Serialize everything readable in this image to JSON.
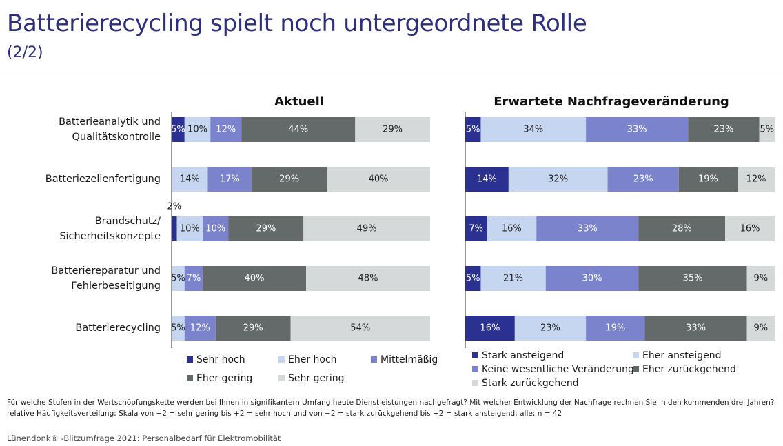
{
  "title": "Batterierecycling spielt noch untergeordnete Rolle",
  "subtitle": "(2/2)",
  "footnote_question": "Für welche Stufen in der Wertschöpfungskette werden bei Ihnen in signifikantem Umfang heute Dienstleistungen nachgefragt? Mit welcher Entwicklung der Nachfrage rechnen Sie in den kommenden drei Jahren?",
  "footnote_scale": "relative Häufigkeitsverteilung; Skala von −2 = sehr gering bis +2 = sehr hoch und von −2 = stark zurückgehend bis +2 = stark ansteigend; alle; n = 42",
  "source": "Lünendonk® -Blitzumfrage 2021: Personalbedarf für Elektromobilität",
  "chart_data": [
    {
      "type": "bar",
      "orientation": "horizontal-stacked",
      "title": "Aktuell",
      "categories": [
        [
          "Batterieanalytik und",
          "Qualitätskontrolle"
        ],
        [
          "Batteriezellenfertigung"
        ],
        [
          "Brandschutz/",
          "Sicherheitskonzepte"
        ],
        [
          "Batteriereparatur und",
          "Fehlerbeseitigung"
        ],
        [
          "Batterierecycling"
        ]
      ],
      "series": [
        {
          "name": "Sehr hoch",
          "color": "#2b3190",
          "values": [
            5,
            0,
            2,
            0,
            0
          ],
          "labels": [
            "5%",
            "",
            "2%",
            "",
            ""
          ]
        },
        {
          "name": "Eher hoch",
          "color": "#c6d6f1",
          "values": [
            10,
            14,
            10,
            5,
            5
          ],
          "labels": [
            "10%",
            "14%",
            "10%",
            "5%",
            "5%"
          ]
        },
        {
          "name": "Mittelmäßig",
          "color": "#7b83cc",
          "values": [
            12,
            17,
            10,
            7,
            12
          ],
          "labels": [
            "12%",
            "17%",
            "10%",
            "7%",
            "12%"
          ]
        },
        {
          "name": "Eher gering",
          "color": "#646969",
          "values": [
            44,
            29,
            29,
            40,
            29
          ],
          "labels": [
            "44%",
            "29%",
            "29%",
            "40%",
            "29%"
          ]
        },
        {
          "name": "Sehr gering",
          "color": "#d5d9da",
          "values": [
            29,
            40,
            49,
            48,
            54
          ],
          "labels": [
            "29%",
            "40%",
            "49%",
            "48%",
            "54%"
          ]
        }
      ]
    },
    {
      "type": "bar",
      "orientation": "horizontal-stacked",
      "title": "Erwartete Nachfrageveränderung",
      "categories": [
        [
          "Batterieanalytik und",
          "Qualitätskontrolle"
        ],
        [
          "Batteriezellenfertigung"
        ],
        [
          "Brandschutz/",
          "Sicherheitskonzepte"
        ],
        [
          "Batteriereparatur und",
          "Fehlerbeseitigung"
        ],
        [
          "Batterierecycling"
        ]
      ],
      "series": [
        {
          "name": "Stark ansteigend",
          "color": "#2b3190",
          "values": [
            5,
            14,
            7,
            5,
            16
          ],
          "labels": [
            "5%",
            "14%",
            "7%",
            "5%",
            "16%"
          ]
        },
        {
          "name": "Eher ansteigend",
          "color": "#c6d6f1",
          "values": [
            34,
            32,
            16,
            21,
            23
          ],
          "labels": [
            "34%",
            "32%",
            "16%",
            "21%",
            "23%"
          ]
        },
        {
          "name": "Keine wesentliche Veränderung",
          "color": "#7b83cc",
          "values": [
            33,
            23,
            33,
            30,
            19
          ],
          "labels": [
            "33%",
            "23%",
            "33%",
            "30%",
            "19%"
          ]
        },
        {
          "name": "Eher zurückgehend",
          "color": "#646969",
          "values": [
            23,
            19,
            28,
            35,
            33
          ],
          "labels": [
            "23%",
            "19%",
            "28%",
            "35%",
            "33%"
          ]
        },
        {
          "name": "Stark zurückgehend",
          "color": "#d5d9da",
          "values": [
            5,
            12,
            16,
            9,
            9
          ],
          "labels": [
            "5%",
            "12%",
            "16%",
            "9%",
            "9%"
          ]
        }
      ]
    }
  ]
}
